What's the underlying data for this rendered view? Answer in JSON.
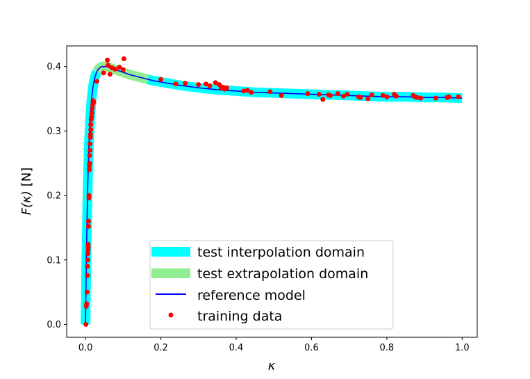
{
  "chart_data": {
    "type": "line",
    "xlabel": "κ",
    "ylabel_main": "F(κ)",
    "ylabel_unit": "[N]",
    "xlim": [
      -0.05,
      1.04
    ],
    "ylim": [
      -0.02,
      0.432
    ],
    "xticks": [
      0.0,
      0.2,
      0.4,
      0.6,
      0.8,
      1.0
    ],
    "xtick_labels": [
      "0.0",
      "0.2",
      "0.4",
      "0.6",
      "0.8",
      "1.0"
    ],
    "yticks": [
      0.0,
      0.1,
      0.2,
      0.3,
      0.4
    ],
    "ytick_labels": [
      "0.0",
      "0.1",
      "0.2",
      "0.3",
      "0.4"
    ],
    "grid": false,
    "legend_position": "bottom-center",
    "series": [
      {
        "name": "test interpolation domain",
        "kind": "band",
        "color": "#00ffff",
        "segments": [
          [
            0.0,
            0.03
          ],
          [
            0.165,
            1.0
          ]
        ]
      },
      {
        "name": "test extrapolation domain",
        "kind": "band",
        "color": "#90ee90",
        "segments": [
          [
            0.03,
            0.165
          ]
        ]
      },
      {
        "name": "reference model",
        "kind": "line",
        "color": "#0000ff",
        "x": [
          0.0,
          0.001,
          0.002,
          0.003,
          0.004,
          0.005,
          0.006,
          0.007,
          0.008,
          0.009,
          0.01,
          0.012,
          0.014,
          0.016,
          0.018,
          0.02,
          0.022,
          0.024,
          0.026,
          0.028,
          0.03,
          0.033,
          0.036,
          0.04,
          0.045,
          0.05,
          0.055,
          0.06,
          0.065,
          0.07,
          0.08,
          0.09,
          0.1,
          0.12,
          0.14,
          0.16,
          0.18,
          0.2,
          0.25,
          0.3,
          0.35,
          0.4,
          0.45,
          0.5,
          0.55,
          0.6,
          0.65,
          0.7,
          0.75,
          0.8,
          0.85,
          0.9,
          0.95,
          1.0
        ],
        "y": [
          0.0,
          0.046,
          0.088,
          0.126,
          0.16,
          0.19,
          0.216,
          0.239,
          0.259,
          0.276,
          0.291,
          0.316,
          0.335,
          0.349,
          0.36,
          0.369,
          0.376,
          0.381,
          0.385,
          0.389,
          0.392,
          0.395,
          0.397,
          0.399,
          0.4,
          0.4,
          0.4,
          0.399,
          0.398,
          0.397,
          0.395,
          0.393,
          0.391,
          0.387,
          0.384,
          0.381,
          0.378,
          0.376,
          0.371,
          0.367,
          0.364,
          0.362,
          0.36,
          0.359,
          0.358,
          0.357,
          0.356,
          0.355,
          0.354,
          0.353,
          0.353,
          0.352,
          0.352,
          0.351
        ]
      },
      {
        "name": "training data",
        "kind": "scatter",
        "color": "#ff0000",
        "x": [
          0.001,
          0.002,
          0.003,
          0.004,
          0.005,
          0.005,
          0.006,
          0.006,
          0.007,
          0.007,
          0.007,
          0.008,
          0.008,
          0.009,
          0.009,
          0.01,
          0.01,
          0.011,
          0.011,
          0.012,
          0.012,
          0.013,
          0.013,
          0.014,
          0.014,
          0.015,
          0.016,
          0.017,
          0.018,
          0.019,
          0.02,
          0.022,
          0.03,
          0.048,
          0.058,
          0.06,
          0.065,
          0.07,
          0.078,
          0.09,
          0.1,
          0.102,
          0.2,
          0.24,
          0.265,
          0.3,
          0.32,
          0.33,
          0.345,
          0.355,
          0.36,
          0.365,
          0.37,
          0.375,
          0.42,
          0.43,
          0.44,
          0.49,
          0.52,
          0.59,
          0.62,
          0.63,
          0.645,
          0.65,
          0.67,
          0.685,
          0.695,
          0.725,
          0.73,
          0.75,
          0.76,
          0.79,
          0.8,
          0.82,
          0.825,
          0.87,
          0.875,
          0.88,
          0.89,
          0.93,
          0.96,
          0.965,
          0.99
        ],
        "y": [
          0.0,
          0.028,
          0.032,
          0.05,
          0.076,
          0.09,
          0.1,
          0.11,
          0.116,
          0.12,
          0.124,
          0.152,
          0.16,
          0.196,
          0.2,
          0.24,
          0.246,
          0.25,
          0.262,
          0.27,
          0.28,
          0.29,
          0.295,
          0.302,
          0.31,
          0.318,
          0.322,
          0.328,
          0.335,
          0.341,
          0.347,
          0.345,
          0.377,
          0.39,
          0.41,
          0.402,
          0.388,
          0.398,
          0.396,
          0.399,
          0.395,
          0.412,
          0.38,
          0.373,
          0.374,
          0.372,
          0.373,
          0.37,
          0.375,
          0.372,
          0.366,
          0.368,
          0.365,
          0.367,
          0.362,
          0.363,
          0.36,
          0.361,
          0.355,
          0.358,
          0.357,
          0.349,
          0.356,
          0.355,
          0.358,
          0.354,
          0.357,
          0.353,
          0.352,
          0.35,
          0.356,
          0.355,
          0.353,
          0.357,
          0.354,
          0.355,
          0.353,
          0.352,
          0.351,
          0.351,
          0.352,
          0.353,
          0.353
        ]
      }
    ]
  }
}
